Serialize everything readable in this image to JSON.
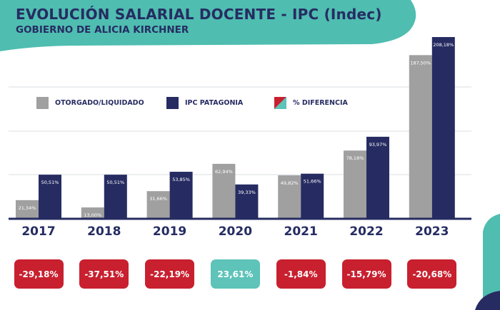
{
  "header": {
    "title": "EVOLUCIÓN SALARIAL DOCENTE - IPC (Indec)",
    "subtitle": "GOBIERNO DE ALICIA KIRCHNER"
  },
  "colors": {
    "otorgado": "#a0a0a0",
    "ipc": "#262c62",
    "diff_negative": "#c8202f",
    "diff_positive": "#5ec3b8",
    "teal_shape": "#4fbdb0",
    "grid": "#d9dde2",
    "baseline": "#262c62"
  },
  "legend": [
    {
      "label": "OTORGADO/LIQUIDADO",
      "swatch": "otorgado"
    },
    {
      "label": "IPC PATAGONIA",
      "swatch": "ipc"
    },
    {
      "label": "% DIFERENCIA",
      "swatch": "split"
    }
  ],
  "chart_data": {
    "type": "bar",
    "categories": [
      "2017",
      "2018",
      "2019",
      "2020",
      "2021",
      "2022",
      "2023"
    ],
    "series": [
      {
        "name": "OTORGADO/LIQUIDADO",
        "values": [
          21.34,
          13.0,
          31.66,
          62.94,
          49.82,
          78.18,
          187.5
        ],
        "labels": [
          "21,34%",
          "13,00%",
          "31,66%",
          "62,94%",
          "49,82%",
          "78,18%",
          "187,50%"
        ]
      },
      {
        "name": "IPC PATAGONIA",
        "values": [
          50.51,
          50.51,
          53.85,
          39.33,
          51.66,
          93.97,
          208.18
        ],
        "labels": [
          "50,51%",
          "50,51%",
          "53,85%",
          "39,33%",
          "51,66%",
          "93,97%",
          "208,18%"
        ]
      }
    ],
    "differences": [
      "-29,18%",
      "-37,51%",
      "-22,19%",
      "23,61%",
      "-1,84%",
      "-15,79%",
      "-20,68%"
    ],
    "difference_values": [
      -29.18,
      -37.51,
      -22.19,
      23.61,
      -1.84,
      -15.79,
      -20.68
    ],
    "ylim": [
      0,
      208.18
    ],
    "grid": true,
    "legend_position": "top"
  }
}
